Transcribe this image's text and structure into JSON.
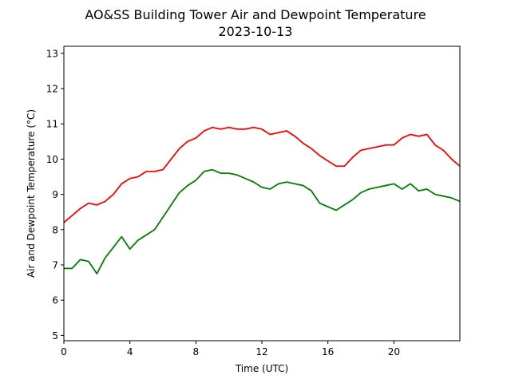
{
  "chart_data": {
    "type": "line",
    "title": "AO&SS Building Tower Air and Dewpoint Temperature",
    "subtitle": "2023-10-13",
    "xlabel": "Time (UTC)",
    "ylabel": "Air and Dewpoint Temperature (°C)",
    "xlim": [
      0,
      24
    ],
    "ylim": [
      4.85,
      13.2
    ],
    "xticks": [
      0,
      4,
      8,
      12,
      16,
      20
    ],
    "yticks": [
      5,
      6,
      7,
      8,
      9,
      10,
      11,
      12,
      13
    ],
    "grid": false,
    "series": [
      {
        "color": "#ff0000",
        "x": [
          0,
          0.5,
          1,
          1.5,
          2,
          2.5,
          3,
          3.5,
          4,
          4.5,
          5,
          5.5,
          6,
          6.5,
          7,
          7.5,
          8,
          8.5,
          9,
          9.5,
          10,
          10.5,
          11,
          11.5,
          12,
          12.5,
          13,
          13.5,
          14,
          14.5,
          15,
          15.5,
          16,
          16.5,
          17,
          17.5,
          18,
          18.5,
          19,
          19.5,
          20,
          20.5,
          21,
          21.5,
          22,
          22.5,
          23,
          23.5,
          24
        ],
        "y": [
          8.2,
          8.4,
          8.6,
          8.75,
          8.7,
          8.8,
          9.0,
          9.3,
          9.45,
          9.5,
          9.65,
          9.65,
          9.7,
          10.0,
          10.3,
          10.5,
          10.6,
          10.8,
          10.9,
          10.85,
          10.9,
          10.85,
          10.85,
          10.9,
          10.85,
          10.7,
          10.75,
          10.8,
          10.65,
          10.45,
          10.3,
          10.1,
          9.95,
          9.8,
          9.8,
          10.05,
          10.25,
          10.3,
          10.35,
          10.4,
          10.4,
          10.6,
          10.7,
          10.65,
          10.7,
          10.4,
          10.25,
          10.0,
          9.8
        ]
      },
      {
        "color": "#008000",
        "x": [
          0,
          0.5,
          1,
          1.5,
          2,
          2.5,
          3,
          3.5,
          4,
          4.5,
          5,
          5.5,
          6,
          6.5,
          7,
          7.5,
          8,
          8.5,
          9,
          9.5,
          10,
          10.5,
          11,
          11.5,
          12,
          12.5,
          13,
          13.5,
          14,
          14.5,
          15,
          15.5,
          16,
          16.5,
          17,
          17.5,
          18,
          18.5,
          19,
          19.5,
          20,
          20.5,
          21,
          21.5,
          22,
          22.5,
          23,
          23.5,
          24
        ],
        "y": [
          6.9,
          6.9,
          7.15,
          7.1,
          6.75,
          7.2,
          7.5,
          7.8,
          7.45,
          7.7,
          7.85,
          8.0,
          8.35,
          8.7,
          9.05,
          9.25,
          9.4,
          9.65,
          9.7,
          9.6,
          9.6,
          9.55,
          9.45,
          9.35,
          9.2,
          9.15,
          9.3,
          9.35,
          9.3,
          9.25,
          9.1,
          8.75,
          8.65,
          8.55,
          8.7,
          8.85,
          9.05,
          9.15,
          9.2,
          9.25,
          9.3,
          9.15,
          9.3,
          9.1,
          9.15,
          9.0,
          8.95,
          8.9,
          8.8
        ]
      }
    ]
  }
}
